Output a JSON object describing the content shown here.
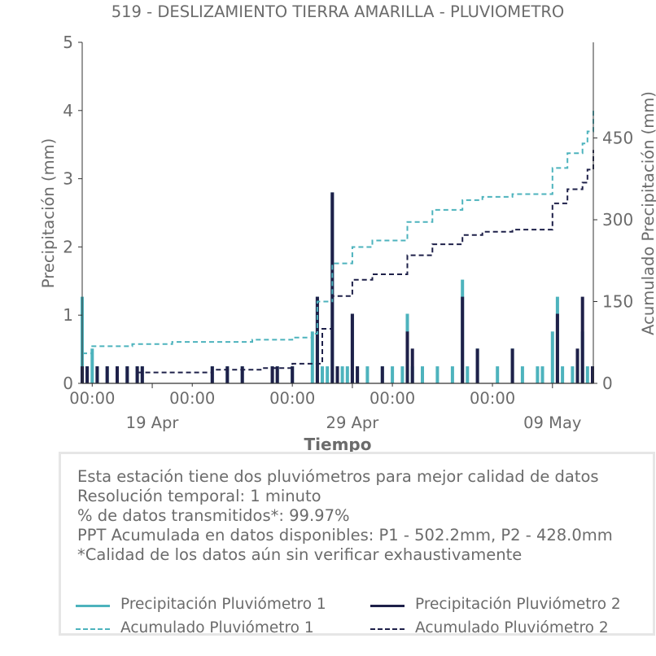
{
  "chart_data": {
    "type": "bar",
    "title": "519 - DESLIZAMIENTO TIERRA AMARILLA - PLUVIOMETRO",
    "xlabel": "Tiempo",
    "ylabel_left": "Precipitación (mm)",
    "ylabel_right": "Acumulado Precipitación (mm)",
    "ylim_left": [
      0,
      5
    ],
    "ylim_right": [
      0,
      5.0
    ],
    "yticks_left": [
      "0",
      "1",
      "2",
      "3",
      "4",
      "5"
    ],
    "yticks_right": [
      "0",
      "150",
      "300",
      "450"
    ],
    "x_range_days": [
      "2025-04-15T12:00",
      "2025-05-11T01:00"
    ],
    "xticks_major": [
      {
        "day": "2025-04-19",
        "time": "00:00",
        "date": "19 Apr"
      },
      {
        "day": "2025-04-29",
        "time": "00:00",
        "date": "29 Apr"
      },
      {
        "day": "2025-05-09",
        "time": "00:00",
        "date": "09 May"
      }
    ],
    "xticks_minor": [
      {
        "day": "2025-04-19",
        "label": "00:00"
      },
      {
        "day": "2025-04-24",
        "label": "00:00"
      },
      {
        "day": "2025-04-29",
        "label": "00:00"
      },
      {
        "day": "2025-05-04",
        "label": "00:00"
      },
      {
        "day": "2025-05-09",
        "label": "00:00"
      }
    ],
    "grid": false,
    "legend_position": "bottom",
    "series": [
      {
        "name": "Precipitación Pluviómetro 1",
        "style": "bar",
        "color": "#4db3bd",
        "points": [
          [
            "2025-04-15T12:00",
            1.27
          ],
          [
            "2025-04-15T18:00",
            0.25
          ],
          [
            "2025-04-16T00:00",
            0.51
          ],
          [
            "2025-04-16T06:00",
            0.25
          ],
          [
            "2025-04-16T18:00",
            0.25
          ],
          [
            "2025-04-17T06:00",
            0.25
          ],
          [
            "2025-04-17T18:00",
            0.25
          ],
          [
            "2025-04-18T06:00",
            0.25
          ],
          [
            "2025-04-18T12:00",
            0.25
          ],
          [
            "2025-04-22T00:00",
            0.25
          ],
          [
            "2025-04-22T18:00",
            0.25
          ],
          [
            "2025-04-23T12:00",
            0.25
          ],
          [
            "2025-04-25T00:00",
            0.25
          ],
          [
            "2025-04-25T06:00",
            0.25
          ],
          [
            "2025-04-26T00:00",
            0.25
          ],
          [
            "2025-04-27T00:00",
            0.76
          ],
          [
            "2025-04-27T06:00",
            1.27
          ],
          [
            "2025-04-27T12:00",
            0.25
          ],
          [
            "2025-04-27T18:00",
            0.25
          ],
          [
            "2025-04-28T00:00",
            2.8
          ],
          [
            "2025-04-28T06:00",
            0.25
          ],
          [
            "2025-04-28T12:00",
            0.25
          ],
          [
            "2025-04-28T18:00",
            0.25
          ],
          [
            "2025-04-29T00:00",
            1.02
          ],
          [
            "2025-04-29T06:00",
            0.25
          ],
          [
            "2025-04-29T18:00",
            0.25
          ],
          [
            "2025-04-30T12:00",
            0.25
          ],
          [
            "2025-04-31T00:00",
            0.25
          ],
          [
            "2025-05-01T12:00",
            0.25
          ],
          [
            "2025-05-01T18:00",
            1.02
          ],
          [
            "2025-05-02T00:00",
            0.25
          ],
          [
            "2025-05-02T12:00",
            0.25
          ],
          [
            "2025-05-03T06:00",
            0.25
          ],
          [
            "2025-05-04T00:00",
            0.25
          ],
          [
            "2025-05-04T12:00",
            1.52
          ],
          [
            "2025-05-04T18:00",
            0.25
          ],
          [
            "2025-05-05T06:00",
            0.51
          ],
          [
            "2025-05-06T06:00",
            0.25
          ],
          [
            "2025-05-07T00:00",
            0.51
          ],
          [
            "2025-05-07T12:00",
            0.25
          ],
          [
            "2025-05-08T06:00",
            0.25
          ],
          [
            "2025-05-08T12:00",
            0.25
          ],
          [
            "2025-05-09T00:00",
            0.76
          ],
          [
            "2025-05-09T06:00",
            1.27
          ],
          [
            "2025-05-09T12:00",
            0.25
          ],
          [
            "2025-05-10T00:00",
            0.25
          ],
          [
            "2025-05-10T06:00",
            0.25
          ],
          [
            "2025-05-10T12:00",
            0.76
          ],
          [
            "2025-05-10T18:00",
            0.25
          ],
          [
            "2025-05-11T00:00",
            0.25
          ]
        ]
      },
      {
        "name": "Precipitación Pluviómetro 2",
        "style": "bar",
        "color": "#1e2049",
        "points": [
          [
            "2025-04-15T12:00",
            0.25
          ],
          [
            "2025-04-15T18:00",
            0.25
          ],
          [
            "2025-04-16T06:00",
            0.25
          ],
          [
            "2025-04-16T18:00",
            0.25
          ],
          [
            "2025-04-17T06:00",
            0.25
          ],
          [
            "2025-04-17T18:00",
            0.25
          ],
          [
            "2025-04-18T06:00",
            0.25
          ],
          [
            "2025-04-18T12:00",
            0.25
          ],
          [
            "2025-04-22T00:00",
            0.25
          ],
          [
            "2025-04-22T18:00",
            0.25
          ],
          [
            "2025-04-23T12:00",
            0.25
          ],
          [
            "2025-04-25T00:00",
            0.25
          ],
          [
            "2025-04-25T06:00",
            0.25
          ],
          [
            "2025-04-26T00:00",
            0.25
          ],
          [
            "2025-04-27T06:00",
            1.27
          ],
          [
            "2025-04-28T00:00",
            2.8
          ],
          [
            "2025-04-28T06:00",
            0.25
          ],
          [
            "2025-04-29T00:00",
            1.02
          ],
          [
            "2025-04-29T06:00",
            0.25
          ],
          [
            "2025-04-30T12:00",
            0.25
          ],
          [
            "2025-05-01T18:00",
            0.76
          ],
          [
            "2025-05-02T00:00",
            0.51
          ],
          [
            "2025-05-04T12:00",
            1.27
          ],
          [
            "2025-05-05T06:00",
            0.51
          ],
          [
            "2025-05-07T00:00",
            0.51
          ],
          [
            "2025-05-09T06:00",
            1.02
          ],
          [
            "2025-05-10T06:00",
            0.51
          ],
          [
            "2025-05-10T12:00",
            1.27
          ],
          [
            "2025-05-11T00:00",
            0.25
          ]
        ]
      },
      {
        "name": "Acumulado Pluviómetro 1",
        "style": "dashed-step",
        "axis": "right",
        "color": "#4db3bd",
        "points": [
          [
            "2025-04-15T12:00",
            55
          ],
          [
            "2025-04-16T00:00",
            68
          ],
          [
            "2025-04-18T00:00",
            72
          ],
          [
            "2025-04-20T00:00",
            76
          ],
          [
            "2025-04-24T00:00",
            80
          ],
          [
            "2025-04-26T00:00",
            84
          ],
          [
            "2025-04-27T00:00",
            91
          ],
          [
            "2025-04-27T06:00",
            150
          ],
          [
            "2025-04-28T00:00",
            220
          ],
          [
            "2025-04-29T00:00",
            250
          ],
          [
            "2025-04-30T00:00",
            262
          ],
          [
            "2025-05-01T18:00",
            296
          ],
          [
            "2025-05-03T00:00",
            318
          ],
          [
            "2025-05-04T12:00",
            336
          ],
          [
            "2025-05-05T12:00",
            342
          ],
          [
            "2025-05-07T00:00",
            347
          ],
          [
            "2025-05-09T00:00",
            395
          ],
          [
            "2025-05-09T18:00",
            422
          ],
          [
            "2025-05-10T12:00",
            440
          ],
          [
            "2025-05-10T18:00",
            462
          ],
          [
            "2025-05-11T06:00",
            500
          ]
        ]
      },
      {
        "name": "Acumulado Pluviómetro 2",
        "style": "dashed-step",
        "axis": "right",
        "color": "#1e2049",
        "points": [
          [
            "2025-04-18T06:00",
            20
          ],
          [
            "2025-04-22T00:00",
            25
          ],
          [
            "2025-04-24T12:00",
            28
          ],
          [
            "2025-04-26T00:00",
            36
          ],
          [
            "2025-04-27T12:00",
            100
          ],
          [
            "2025-04-28T00:00",
            160
          ],
          [
            "2025-04-29T00:00",
            190
          ],
          [
            "2025-04-30T00:00",
            200
          ],
          [
            "2025-05-01T18:00",
            235
          ],
          [
            "2025-05-03T00:00",
            255
          ],
          [
            "2025-05-04T12:00",
            272
          ],
          [
            "2025-05-05T12:00",
            278
          ],
          [
            "2025-05-07T00:00",
            282
          ],
          [
            "2025-05-09T00:00",
            330
          ],
          [
            "2025-05-09T18:00",
            356
          ],
          [
            "2025-05-10T12:00",
            368
          ],
          [
            "2025-05-10T18:00",
            392
          ],
          [
            "2025-05-11T06:00",
            428
          ]
        ]
      }
    ]
  },
  "info": {
    "line1": "Esta estación tiene dos pluviómetros para mejor calidad de datos",
    "line2": "Resolución temporal: 1 minuto",
    "line3": "% de datos transmitidos*: 99.97%",
    "line4": "PPT Acumulada en datos disponibles: P1 - 502.2mm, P2 - 428.0mm",
    "line5": "*Calidad de los datos aún sin verificar exhaustivamente"
  },
  "legend": {
    "p1": "Precipitación Pluviómetro 1",
    "p2": "Precipitación Pluviómetro 2",
    "a1": "Acumulado Pluviómetro 1",
    "a2": "Acumulado Pluviómetro 2"
  },
  "colors": {
    "p1": "#4db3bd",
    "p2": "#1e2049",
    "text": "#6b6b6b",
    "axis": "#333333"
  }
}
